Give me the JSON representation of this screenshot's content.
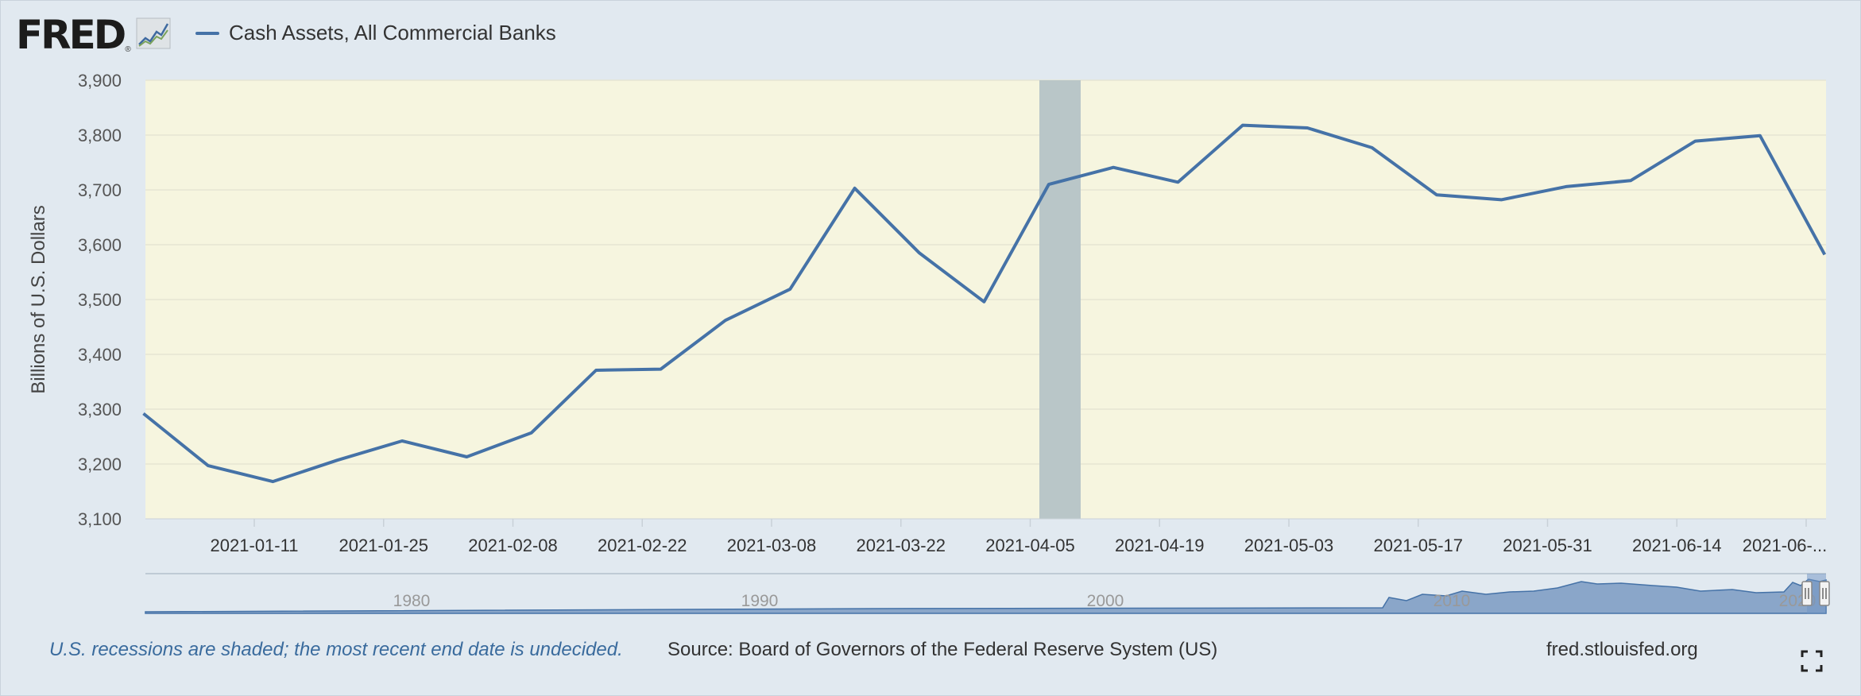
{
  "header": {
    "logo_text": "FRED",
    "logo_mark": "®",
    "legend_label": "Cash Assets, All Commercial Banks"
  },
  "footer": {
    "note": "U.S. recessions are shaded; the most recent end date is undecided.",
    "source": "Source: Board of Governors of the Federal Reserve System (US)",
    "link": "fred.stlouisfed.org"
  },
  "icons": {
    "logo_chart": "line-chart-icon",
    "fullscreen": "fullscreen-icon"
  },
  "colors": {
    "series": "#4572a7",
    "plot_background": "#f6f5df",
    "recession": "#b9c6c8",
    "navigator_fill": "#8aa6c9"
  },
  "chart_data": {
    "type": "line",
    "ylabel": "Billions of U.S. Dollars",
    "ylim": [
      3100,
      3900
    ],
    "yticks": [
      "3,100",
      "3,200",
      "3,300",
      "3,400",
      "3,500",
      "3,600",
      "3,700",
      "3,800",
      "3,900"
    ],
    "xticks": [
      "2021-01-11",
      "2021-01-25",
      "2021-02-08",
      "2021-02-22",
      "2021-03-08",
      "2021-03-22",
      "2021-04-05",
      "2021-04-19",
      "2021-05-03",
      "2021-05-17",
      "2021-05-31",
      "2021-06-14",
      "2021-06-..."
    ],
    "grid": true,
    "legend": "top-left",
    "recession_label": "recession shading around 2021-04-05",
    "series": [
      {
        "name": "Cash Assets, All Commercial Banks",
        "x": [
          "2020-12-30",
          "2021-01-06",
          "2021-01-13",
          "2021-01-20",
          "2021-01-27",
          "2021-02-03",
          "2021-02-10",
          "2021-02-17",
          "2021-02-24",
          "2021-03-03",
          "2021-03-10",
          "2021-03-17",
          "2021-03-24",
          "2021-03-31",
          "2021-04-07",
          "2021-04-14",
          "2021-04-21",
          "2021-04-28",
          "2021-05-05",
          "2021-05-12",
          "2021-05-19",
          "2021-05-26",
          "2021-06-02",
          "2021-06-09",
          "2021-06-16",
          "2021-06-23",
          "2021-06-30"
        ],
        "values": [
          3292,
          3197,
          3168,
          3207,
          3242,
          3213,
          3257,
          3371,
          3373,
          3462,
          3519,
          3703,
          3585,
          3496,
          3710,
          3741,
          3714,
          3818,
          3813,
          3777,
          3691,
          3682,
          3706,
          3717,
          3789,
          3799,
          3582
        ]
      }
    ],
    "navigator": {
      "labels": [
        "1980",
        "1990",
        "2000",
        "2010",
        "2020"
      ]
    }
  }
}
